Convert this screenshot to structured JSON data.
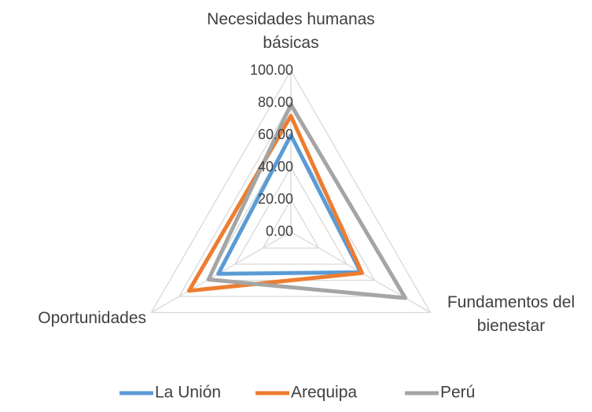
{
  "chart_data": {
    "type": "radar",
    "categories": [
      "Necesidades humanas básicas",
      "Fundamentos del bienestar",
      "Oportunidades"
    ],
    "series": [
      {
        "name": "La Unión",
        "color": "#5b9bd5",
        "values": [
          60,
          50,
          52
        ]
      },
      {
        "name": "Arequipa",
        "color": "#ed7d31",
        "values": [
          72,
          51,
          73
        ]
      },
      {
        "name": "Perú",
        "color": "#a5a5a5",
        "values": [
          79,
          82,
          59
        ]
      }
    ],
    "ylim": [
      0,
      100
    ],
    "yticks": [
      {
        "value": 0,
        "label": "0.00"
      },
      {
        "value": 20,
        "label": "20.00"
      },
      {
        "value": 40,
        "label": "40.00"
      },
      {
        "value": 60,
        "label": "60.00"
      },
      {
        "value": 80,
        "label": "80.00"
      },
      {
        "value": 100,
        "label": "100.00"
      }
    ],
    "grid": true,
    "legend": "bottom"
  }
}
